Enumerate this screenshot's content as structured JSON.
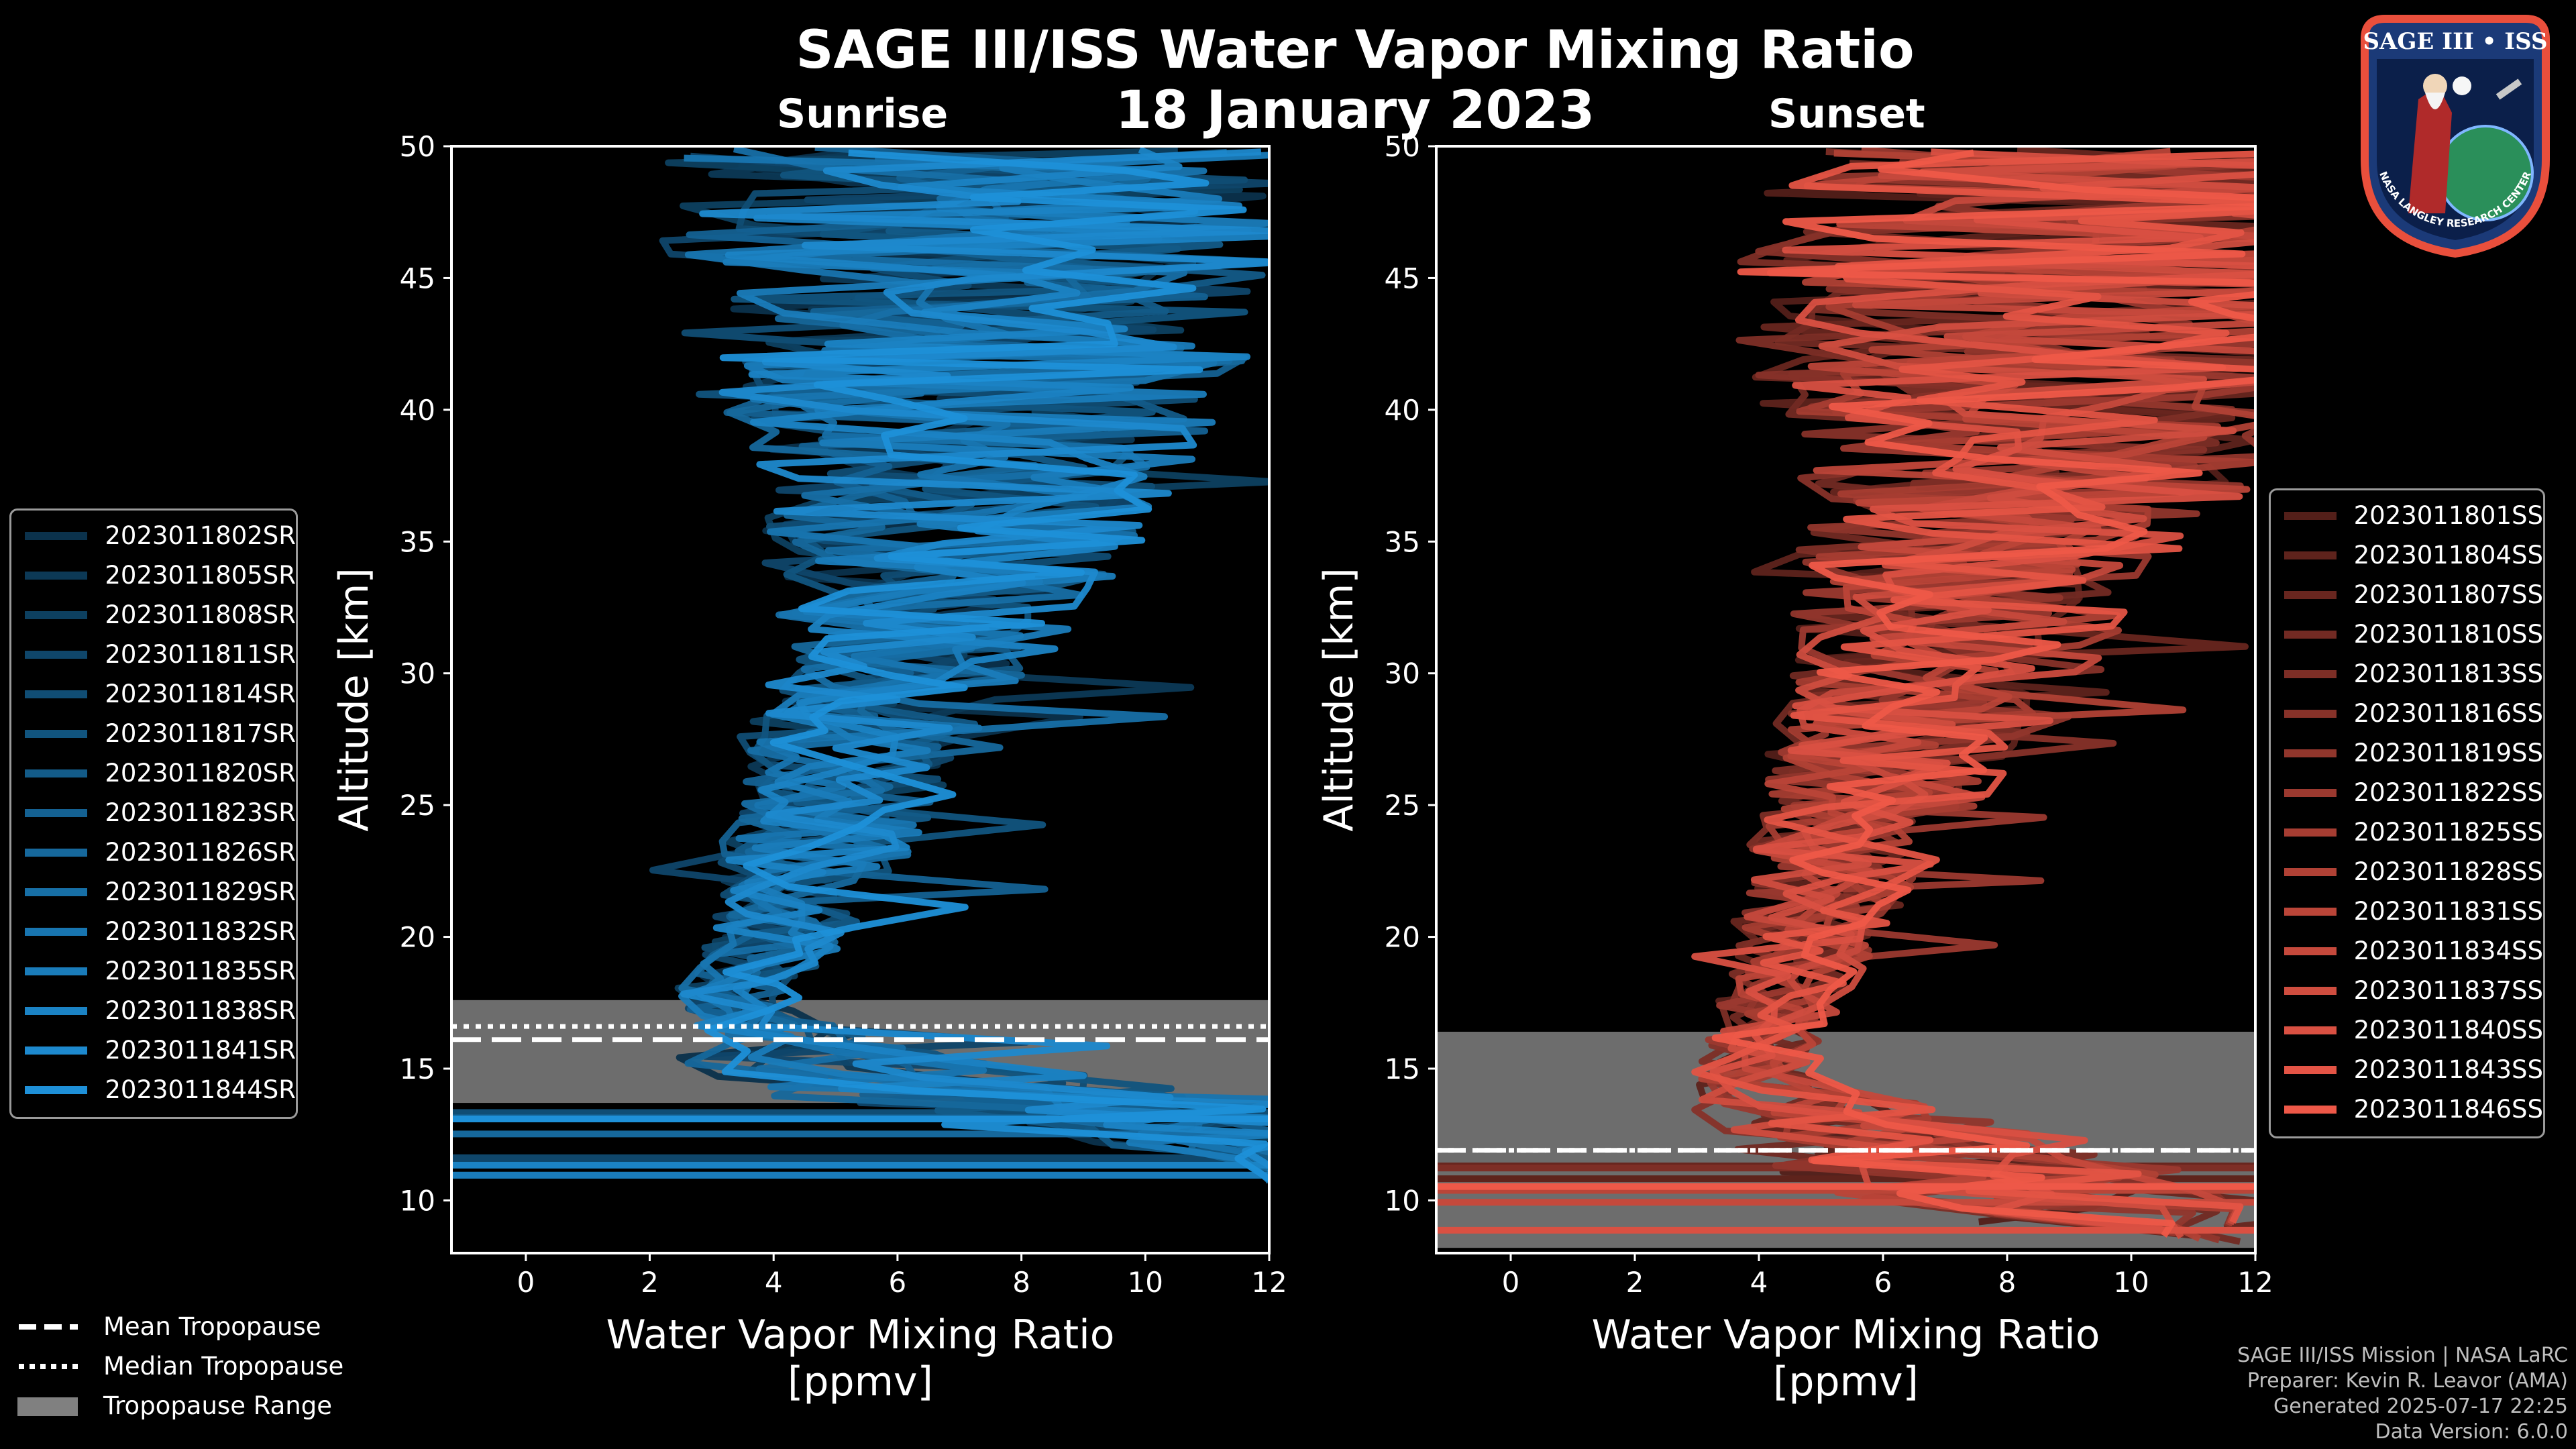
{
  "title": "SAGE III/ISS Water Vapor Mixing Ratio",
  "date": "18 January 2023",
  "panels": {
    "sunrise": {
      "subtitle": "Sunrise"
    },
    "sunset": {
      "subtitle": "Sunset"
    }
  },
  "tropopause_legend": {
    "mean": "Mean Tropopause",
    "median": "Median Tropopause",
    "range": "Tropopause Range"
  },
  "footer": {
    "mission": "SAGE III/ISS Mission | NASA LaRC",
    "preparer": "Preparer: Kevin R. Leavor (AMA)",
    "generated": "Generated 2025-07-17 22:25",
    "version": "Data Version: 6.0.0"
  },
  "logo": {
    "text": "SAGE III • ISS",
    "ring_text": "NASA LANGLEY RESEARCH CENTER"
  },
  "colors": {
    "sunrise": "#1e90d8",
    "sunset": "#ee5848",
    "range": "#808080"
  },
  "chart_data": [
    {
      "type": "line",
      "title": "Sunrise",
      "xlabel": "Water Vapor Mixing Ratio\n[ppmv]",
      "xlabel_line1": "Water Vapor Mixing Ratio",
      "xlabel_line2": "[ppmv]",
      "ylabel": "Altitude [km]",
      "xlim": [
        -1.2,
        12
      ],
      "ylim": [
        8,
        50
      ],
      "xticks": [
        0,
        2,
        4,
        6,
        8,
        10,
        12
      ],
      "yticks": [
        10,
        15,
        20,
        25,
        30,
        35,
        40,
        45,
        50
      ],
      "tropopause": {
        "mean": 16.1,
        "median": 16.6,
        "range": [
          13.7,
          17.6
        ]
      },
      "series": [
        {
          "name": "2023011802SR"
        },
        {
          "name": "2023011805SR"
        },
        {
          "name": "2023011808SR"
        },
        {
          "name": "2023011811SR"
        },
        {
          "name": "2023011814SR"
        },
        {
          "name": "2023011817SR"
        },
        {
          "name": "2023011820SR"
        },
        {
          "name": "2023011823SR"
        },
        {
          "name": "2023011826SR"
        },
        {
          "name": "2023011829SR"
        },
        {
          "name": "2023011832SR"
        },
        {
          "name": "2023011835SR"
        },
        {
          "name": "2023011838SR"
        },
        {
          "name": "2023011841SR"
        },
        {
          "name": "2023011844SR"
        }
      ],
      "profile_envelope": {
        "altitude": [
          10.6,
          11.4,
          13,
          14,
          15,
          16,
          17,
          18,
          19,
          20,
          22,
          24,
          26,
          28,
          30,
          33,
          36,
          40,
          44,
          48,
          50
        ],
        "center": [
          12,
          12,
          11,
          8,
          5.5,
          4.6,
          3.6,
          3.5,
          3.9,
          4.3,
          4.6,
          5.0,
          5.4,
          5.8,
          6.3,
          6.9,
          7.3,
          7.6,
          7.8,
          8.0,
          8.0
        ],
        "spread": [
          0.0,
          0.0,
          4.5,
          4.0,
          3.0,
          1.4,
          1.0,
          1.0,
          1.0,
          1.2,
          1.4,
          1.6,
          1.8,
          2.0,
          2.2,
          2.6,
          3.2,
          4.2,
          4.8,
          5.0,
          5.0
        ]
      }
    },
    {
      "type": "line",
      "title": "Sunset",
      "xlabel": "Water Vapor Mixing Ratio\n[ppmv]",
      "xlabel_line1": "Water Vapor Mixing Ratio",
      "xlabel_line2": "[ppmv]",
      "ylabel": "Altitude [km]",
      "xlim": [
        -1.2,
        12
      ],
      "ylim": [
        8,
        50
      ],
      "xticks": [
        0,
        2,
        4,
        6,
        8,
        10,
        12
      ],
      "yticks": [
        10,
        15,
        20,
        25,
        30,
        35,
        40,
        45,
        50
      ],
      "tropopause": {
        "mean": 11.9,
        "median": 11.9,
        "range": [
          8.2,
          16.4
        ]
      },
      "series": [
        {
          "name": "2023011801SS"
        },
        {
          "name": "2023011804SS"
        },
        {
          "name": "2023011807SS"
        },
        {
          "name": "2023011810SS"
        },
        {
          "name": "2023011813SS"
        },
        {
          "name": "2023011816SS"
        },
        {
          "name": "2023011819SS"
        },
        {
          "name": "2023011822SS"
        },
        {
          "name": "2023011825SS"
        },
        {
          "name": "2023011828SS"
        },
        {
          "name": "2023011831SS"
        },
        {
          "name": "2023011834SS"
        },
        {
          "name": "2023011837SS"
        },
        {
          "name": "2023011840SS"
        },
        {
          "name": "2023011843SS"
        },
        {
          "name": "2023011846SS"
        }
      ],
      "profile_envelope": {
        "altitude": [
          8.4,
          9,
          10,
          11,
          12,
          13,
          14,
          15,
          16,
          18,
          20,
          22,
          24,
          26,
          28,
          30,
          33,
          36,
          40,
          44,
          48,
          50
        ],
        "center": [
          12,
          10,
          8,
          7,
          6,
          5,
          4.2,
          3.6,
          3.9,
          4.3,
          4.6,
          4.9,
          5.2,
          5.6,
          6.0,
          6.4,
          6.9,
          7.3,
          7.7,
          8.0,
          8.3,
          8.3
        ],
        "spread": [
          0.0,
          2.5,
          3.5,
          3.5,
          3.0,
          2.5,
          1.5,
          0.9,
          0.9,
          1.0,
          1.2,
          1.4,
          1.6,
          1.9,
          2.1,
          2.4,
          2.8,
          3.5,
          4.5,
          5.2,
          5.4,
          5.4
        ]
      }
    }
  ]
}
